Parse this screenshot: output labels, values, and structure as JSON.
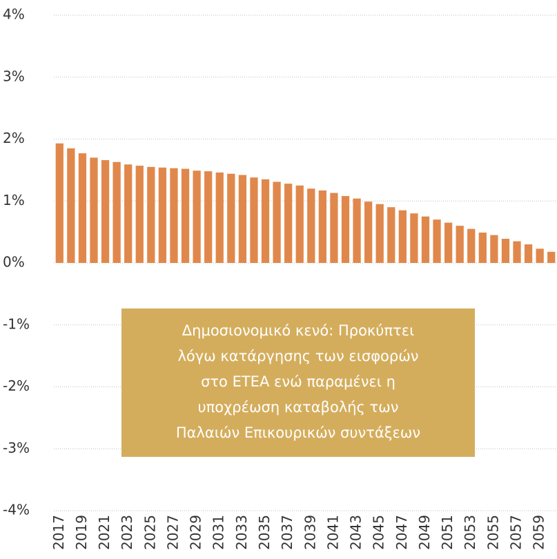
{
  "chart_data": {
    "type": "bar",
    "categories": [
      "2017",
      null,
      "2019",
      null,
      "2021",
      null,
      "2023",
      null,
      "2025",
      null,
      "2027",
      null,
      "2029",
      null,
      "2031",
      null,
      "2033",
      null,
      "2035",
      null,
      "2037",
      null,
      "2039",
      null,
      "2041",
      null,
      "2043",
      null,
      "2045",
      null,
      "2047",
      null,
      "2049",
      null,
      "2051",
      null,
      "2053",
      null,
      "2055",
      null,
      "2057",
      null,
      "2059",
      null
    ],
    "values": [
      1.93,
      1.85,
      1.77,
      1.7,
      1.66,
      1.63,
      1.59,
      1.57,
      1.55,
      1.54,
      1.53,
      1.52,
      1.49,
      1.48,
      1.46,
      1.44,
      1.42,
      1.38,
      1.35,
      1.31,
      1.28,
      1.25,
      1.2,
      1.17,
      1.13,
      1.08,
      1.04,
      0.99,
      0.95,
      0.9,
      0.85,
      0.8,
      0.75,
      0.7,
      0.65,
      0.6,
      0.55,
      0.49,
      0.45,
      0.39,
      0.35,
      0.3,
      0.23,
      0.18
    ],
    "color": "#e0884b",
    "ylim": [
      -4,
      4
    ],
    "yticks": [
      {
        "value": -4,
        "label": "-4%"
      },
      {
        "value": -3,
        "label": "-3%"
      },
      {
        "value": -2,
        "label": "-2%"
      },
      {
        "value": -1,
        "label": "-1%"
      },
      {
        "value": 0,
        "label": "0%"
      },
      {
        "value": 1,
        "label": "1%"
      },
      {
        "value": 2,
        "label": "2%"
      },
      {
        "value": 3,
        "label": "3%"
      },
      {
        "value": 4,
        "label": "4%"
      }
    ],
    "grid": true,
    "annotation": {
      "lines": [
        "Δημοσιονομικό κενό: Προκύπτει",
        "λόγω κατάργησης των εισφορών",
        "στο ΕΤΕΑ ενώ παραμένει η",
        "υποχρέωση καταβολής των",
        "Παλαιών Επικουρικών συντάξεων"
      ],
      "color": "#d4ad5c"
    }
  }
}
